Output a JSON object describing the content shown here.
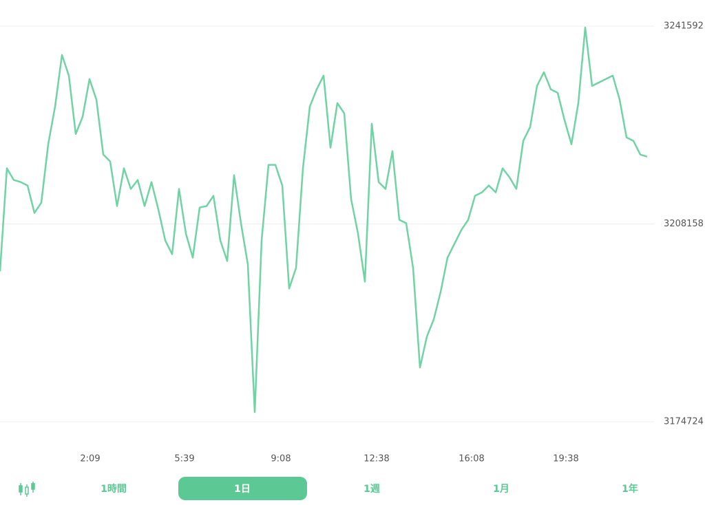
{
  "chart_data": {
    "type": "line",
    "color": "#6fd3a4",
    "grid": true,
    "series": [
      {
        "color": "#6fd3a4",
        "values": [
          3200148,
          3217561,
          3215588,
          3215240,
          3214659,
          3210016,
          3211757,
          3221625,
          3228009,
          3236716,
          3233234,
          3223366,
          3226268,
          3232653,
          3229170,
          3219883,
          3218722,
          3211176,
          3217561,
          3214079,
          3215588,
          3211176,
          3215240,
          3210596,
          3205372,
          3203050,
          3214079,
          3206533,
          3202470,
          3210944,
          3211176,
          3212918,
          3205372,
          3201889,
          3216400,
          3208274,
          3201309,
          3176349,
          3205372,
          3218142,
          3218142,
          3214659,
          3197246,
          3200728,
          3217561,
          3228009,
          3230912,
          3233234,
          3221044,
          3228590,
          3226849,
          3212337,
          3206533,
          3198407,
          3225107,
          3215240,
          3214079,
          3220464,
          3208855,
          3208274,
          3200728,
          3183895,
          3189119,
          3192022,
          3196665,
          3202470,
          3204791,
          3207113,
          3208855,
          3212918,
          3213498,
          3214659,
          3213498,
          3217561,
          3216052,
          3214079,
          3222205,
          3224527,
          3231492,
          3233814,
          3230912,
          3230331,
          3225688,
          3221625,
          3228590,
          3241360,
          3231492,
          3232073,
          3232653,
          3233234,
          3229170,
          3222785,
          3222205,
          3219883,
          3219535
        ]
      }
    ],
    "xlim": [
      0,
      94
    ],
    "xticks": [
      {
        "value": 13.1,
        "label": "2:09"
      },
      {
        "value": 26.8,
        "label": "5:39"
      },
      {
        "value": 40.8,
        "label": "9:08"
      },
      {
        "value": 54.7,
        "label": "12:38"
      },
      {
        "value": 68.5,
        "label": "16:08"
      },
      {
        "value": 82.2,
        "label": "19:38"
      }
    ],
    "ylim": [
      3174724,
      3241592
    ],
    "yticks": [
      3174724,
      3208158,
      3241592
    ]
  },
  "tabs": [
    {
      "label": "1時間"
    },
    {
      "label": "1日"
    },
    {
      "label": "1週"
    },
    {
      "label": "1月"
    },
    {
      "label": "1年"
    }
  ],
  "active_tab": 1
}
